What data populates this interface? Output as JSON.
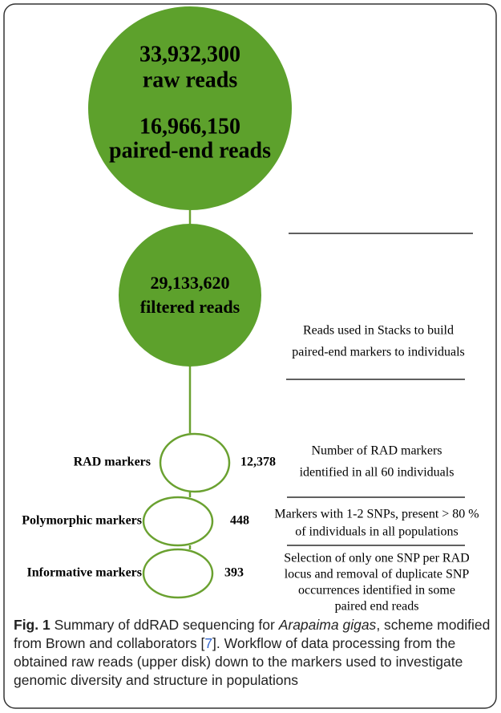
{
  "disks": [
    {
      "text": [
        "33,932,300",
        "raw reads",
        "16,966,150",
        "paired-end reads"
      ]
    },
    {
      "text": [
        "29,133,620",
        "filtered reads"
      ],
      "note": [
        "Reads used in Stacks to build",
        "paired-end markers to individuals"
      ]
    },
    {
      "label": "RAD markers",
      "count": "12,378",
      "note": [
        "Number of RAD markers",
        "identified in all 60 individuals"
      ]
    },
    {
      "label": "Polymorphic markers",
      "count": "448",
      "note": [
        "Markers with 1-2 SNPs, present > 80 %",
        "of individuals in all populations"
      ]
    },
    {
      "label": "Informative markers",
      "count": "393",
      "note": [
        "Selection of only one SNP per RAD",
        "locus and removal of duplicate SNP",
        "occurrences identified in some",
        "paired end reads"
      ]
    }
  ],
  "caption": {
    "label": "Fig. 1",
    "parts": [
      " Summary of ddRAD sequencing for ",
      "Arapaima gigas",
      ", scheme modified from Brown and collaborators [",
      "7",
      "]. Workflow of data processing from the obtained raw reads (upper disk) down to the markers used to investigate genomic diversity and structure in populations"
    ]
  }
}
